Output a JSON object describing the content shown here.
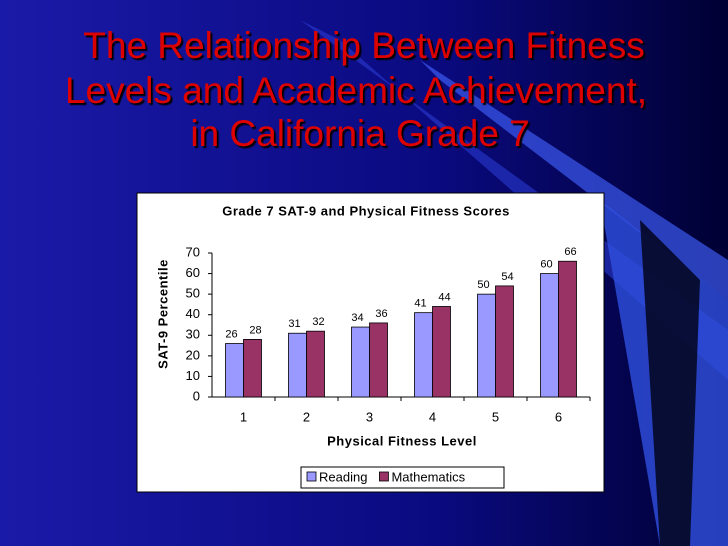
{
  "slide": {
    "title_lines": [
      "The Relationship Between Fitness",
      "Levels and Academic Achievement,",
      "in California Grade 7"
    ]
  },
  "chart_data": {
    "type": "bar",
    "title": "Grade 7 SAT-9 and Physical Fitness Scores",
    "x_label": "Physical Fitness Level",
    "y_label": "SAT-9 Percentile",
    "categories": [
      "1",
      "2",
      "3",
      "4",
      "5",
      "6"
    ],
    "series": [
      {
        "name": "Reading",
        "color": "#9999ff",
        "values": [
          26,
          31,
          34,
          41,
          50,
          60
        ]
      },
      {
        "name": "Mathematics",
        "color": "#993366",
        "values": [
          28,
          32,
          36,
          44,
          54,
          66
        ]
      }
    ],
    "ylim": [
      0,
      70
    ],
    "yticks": [
      0,
      10,
      20,
      30,
      40,
      50,
      60,
      70
    ],
    "grid": false,
    "legend": "bottom",
    "data_labels": true
  }
}
